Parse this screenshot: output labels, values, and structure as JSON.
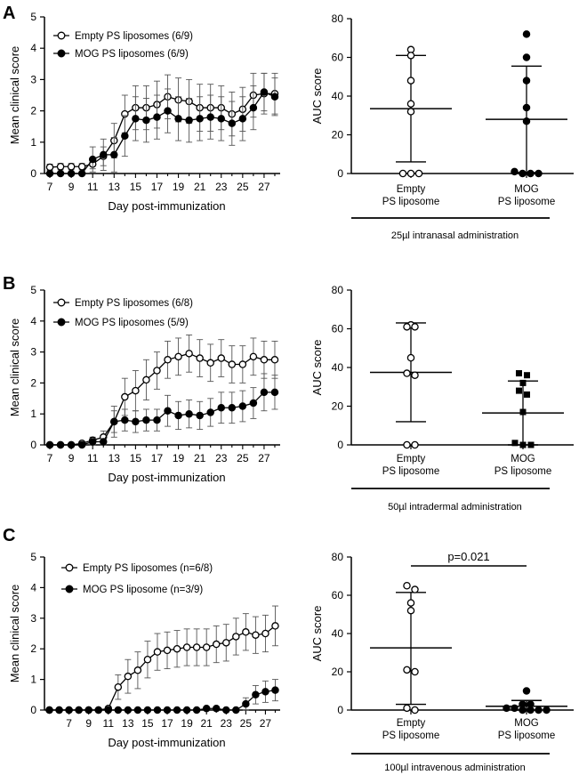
{
  "panels": [
    {
      "letter": "A",
      "line": {
        "xlabel": "Day post-immunization",
        "ylabel": "Mean clinical score",
        "xlim": [
          6.5,
          28.5
        ],
        "ylim": [
          0,
          5
        ],
        "xticks": [
          7,
          9,
          11,
          13,
          15,
          17,
          19,
          21,
          23,
          25,
          27
        ],
        "yticks": [
          0,
          1,
          2,
          3,
          4,
          5
        ],
        "x": [
          7,
          8,
          9,
          10,
          11,
          12,
          13,
          14,
          15,
          16,
          17,
          18,
          19,
          20,
          21,
          22,
          23,
          24,
          25,
          26,
          27,
          28
        ],
        "series": [
          {
            "name": "Empty PS liposomes (6/9)",
            "marker": "open",
            "values": [
              0.2,
              0.22,
              0.22,
              0.22,
              0.3,
              0.55,
              1.05,
              1.9,
              2.1,
              2.1,
              2.2,
              2.45,
              2.35,
              2.3,
              2.1,
              2.1,
              2.1,
              1.9,
              2.05,
              2.5,
              2.55,
              2.55
            ],
            "err": [
              0.1,
              0.1,
              0.1,
              0.1,
              0.15,
              0.3,
              0.55,
              0.6,
              0.7,
              0.7,
              0.75,
              0.7,
              0.7,
              0.7,
              0.75,
              0.75,
              0.7,
              0.7,
              0.7,
              0.7,
              0.65,
              0.65
            ]
          },
          {
            "name": "MOG PS liposomes (6/9)",
            "marker": "filled",
            "values": [
              0.0,
              0.0,
              0.0,
              0.0,
              0.45,
              0.6,
              0.6,
              1.2,
              1.75,
              1.7,
              1.8,
              2.0,
              1.75,
              1.7,
              1.75,
              1.8,
              1.75,
              1.6,
              1.75,
              2.1,
              2.6,
              2.45
            ],
            "err": [
              0.0,
              0.0,
              0.0,
              0.0,
              0.4,
              0.5,
              0.55,
              0.65,
              0.7,
              0.7,
              0.7,
              0.7,
              0.7,
              0.7,
              0.7,
              0.7,
              0.7,
              0.7,
              0.7,
              0.7,
              0.6,
              0.6
            ]
          }
        ]
      },
      "auc": {
        "ylabel": "AUC score",
        "ylim": [
          0,
          80
        ],
        "yticks": [
          0,
          20,
          40,
          60,
          80
        ],
        "categories": [
          "Empty\nPS liposome",
          "MOG\nPS liposome"
        ],
        "groups": [
          {
            "marker": "open-circle",
            "points": [
              64,
              61,
              48,
              36,
              32,
              0,
              0,
              0
            ],
            "mean": 33.5,
            "upper": 61,
            "lower": 6
          },
          {
            "marker": "filled-circle",
            "points": [
              72,
              60,
              48,
              34,
              27,
              1,
              0,
              0,
              0
            ],
            "mean": 28,
            "upper": 55.5,
            "lower": 0.5
          }
        ],
        "admin": "25µl intranasal administration",
        "pvalue": ""
      }
    },
    {
      "letter": "B",
      "line": {
        "xlabel": "Day post-immunization",
        "ylabel": "Mean clinical score",
        "xlim": [
          6.5,
          28.5
        ],
        "ylim": [
          0,
          5
        ],
        "xticks": [
          7,
          9,
          11,
          13,
          15,
          17,
          19,
          21,
          23,
          25,
          27
        ],
        "yticks": [
          0,
          1,
          2,
          3,
          4,
          5
        ],
        "x": [
          7,
          8,
          9,
          10,
          11,
          12,
          13,
          14,
          15,
          16,
          17,
          18,
          19,
          20,
          21,
          22,
          23,
          24,
          25,
          26,
          27,
          28
        ],
        "series": [
          {
            "name": "Empty PS liposomes (6/8)",
            "marker": "open",
            "values": [
              0.0,
              0.0,
              0.0,
              0.05,
              0.15,
              0.25,
              0.75,
              1.55,
              1.75,
              2.1,
              2.4,
              2.75,
              2.85,
              2.95,
              2.8,
              2.65,
              2.8,
              2.6,
              2.6,
              2.85,
              2.75,
              2.75
            ],
            "err": [
              0.0,
              0.0,
              0.0,
              0.05,
              0.1,
              0.2,
              0.5,
              0.6,
              0.65,
              0.65,
              0.6,
              0.6,
              0.6,
              0.6,
              0.6,
              0.6,
              0.6,
              0.6,
              0.6,
              0.6,
              0.6,
              0.6
            ]
          },
          {
            "name": "MOG PS liposomes (5/9)",
            "marker": "filled",
            "values": [
              0.0,
              0.0,
              0.0,
              0.0,
              0.1,
              0.1,
              0.75,
              0.8,
              0.75,
              0.8,
              0.8,
              1.1,
              0.95,
              1.0,
              0.95,
              1.05,
              1.2,
              1.2,
              1.25,
              1.35,
              1.7,
              1.7
            ],
            "err": [
              0.0,
              0.0,
              0.0,
              0.0,
              0.1,
              0.1,
              0.35,
              0.35,
              0.35,
              0.35,
              0.35,
              0.5,
              0.45,
              0.45,
              0.45,
              0.45,
              0.5,
              0.5,
              0.5,
              0.5,
              0.6,
              0.55
            ]
          }
        ]
      },
      "auc": {
        "ylabel": "AUC score",
        "ylim": [
          0,
          80
        ],
        "yticks": [
          0,
          20,
          40,
          60,
          80
        ],
        "categories": [
          "Empty\nPS liposome",
          "MOG\nPS liposome"
        ],
        "groups": [
          {
            "marker": "open-circle",
            "points": [
              62,
              61,
              61,
              45,
              37,
              36,
              0,
              0
            ],
            "mean": 37.5,
            "upper": 63,
            "lower": 12
          },
          {
            "marker": "filled-square",
            "points": [
              37,
              36,
              32,
              28,
              26,
              17,
              1,
              0,
              0
            ],
            "mean": 16.5,
            "upper": 33,
            "lower": 0
          }
        ],
        "admin": "50µl intradermal administration",
        "pvalue": ""
      }
    },
    {
      "letter": "C",
      "line": {
        "xlabel": "Day post-immunization",
        "ylabel": "Mean clinical score",
        "xlim": [
          4.5,
          28.5
        ],
        "ylim": [
          0,
          5
        ],
        "xticks": [
          7,
          9,
          11,
          13,
          15,
          17,
          19,
          21,
          23,
          25,
          27
        ],
        "yticks": [
          0,
          1,
          2,
          3,
          4,
          5
        ],
        "x": [
          5,
          6,
          7,
          8,
          9,
          10,
          11,
          12,
          13,
          14,
          15,
          16,
          17,
          18,
          19,
          20,
          21,
          22,
          23,
          24,
          25,
          26,
          27,
          28
        ],
        "series": [
          {
            "name": "Empty PS liposomes (n=6/8)",
            "marker": "open",
            "values": [
              0.0,
              0.0,
              0.0,
              0.0,
              0.0,
              0.0,
              0.05,
              0.75,
              1.1,
              1.3,
              1.65,
              1.9,
              1.95,
              2.0,
              2.05,
              2.05,
              2.05,
              2.15,
              2.2,
              2.4,
              2.55,
              2.45,
              2.5,
              2.75
            ],
            "err": [
              0.0,
              0.0,
              0.0,
              0.0,
              0.0,
              0.0,
              0.05,
              0.4,
              0.55,
              0.6,
              0.6,
              0.6,
              0.6,
              0.6,
              0.6,
              0.6,
              0.6,
              0.6,
              0.6,
              0.6,
              0.6,
              0.6,
              0.6,
              0.65
            ]
          },
          {
            "name": "MOG PS liposome (n=3/9)",
            "marker": "filled",
            "values": [
              0.0,
              0.0,
              0.0,
              0.0,
              0.0,
              0.0,
              0.0,
              0.0,
              0.0,
              0.0,
              0.0,
              0.0,
              0.0,
              0.0,
              0.0,
              0.0,
              0.05,
              0.05,
              0.0,
              0.0,
              0.2,
              0.5,
              0.6,
              0.65
            ],
            "err": [
              0.0,
              0.0,
              0.0,
              0.0,
              0.0,
              0.0,
              0.0,
              0.0,
              0.0,
              0.0,
              0.0,
              0.0,
              0.0,
              0.0,
              0.0,
              0.0,
              0.05,
              0.05,
              0.0,
              0.0,
              0.2,
              0.3,
              0.35,
              0.35
            ]
          }
        ]
      },
      "auc": {
        "ylabel": "AUC score",
        "ylim": [
          0,
          80
        ],
        "yticks": [
          0,
          20,
          40,
          60,
          80
        ],
        "categories": [
          "Empty\nPS liposome",
          "MOG\nPS liposome"
        ],
        "groups": [
          {
            "marker": "open-circle",
            "points": [
              65,
              63,
              56,
              52,
              21,
              20,
              1,
              0
            ],
            "mean": 32.5,
            "upper": 61.5,
            "lower": 3
          },
          {
            "marker": "filled-circle",
            "points": [
              10,
              3,
              3,
              1,
              1,
              0,
              0,
              0,
              0
            ],
            "mean": 2,
            "upper": 5,
            "lower": 0
          }
        ],
        "admin": "100µl intravenous administration",
        "pvalue": "p=0.021"
      }
    }
  ]
}
